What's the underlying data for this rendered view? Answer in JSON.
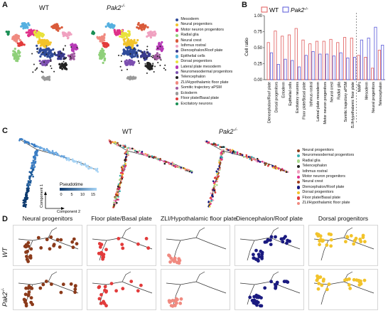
{
  "panels": {
    "A": {
      "letter": "A",
      "title_wt": "WT",
      "title_ko": "Pak2",
      "title_ko_sup": "-/-",
      "legend": [
        {
          "label": "Mesoderm",
          "color": "#2f4b9a"
        },
        {
          "label": "Neural progenitors",
          "color": "#f2c32b"
        },
        {
          "label": "Motor neuron progenitors",
          "color": "#e0318a"
        },
        {
          "label": "Radial glia",
          "color": "#8fd07a"
        },
        {
          "label": "Neural crest",
          "color": "#d95a3a"
        },
        {
          "label": "Isthmus rostral",
          "color": "#f0a1c0"
        },
        {
          "label": "Diencephalon/Roof plate",
          "color": "#3a3a8e"
        },
        {
          "label": "Epithelial cells",
          "color": "#55b0e0"
        },
        {
          "label": "Dorsal progenitors",
          "color": "#e8e23a"
        },
        {
          "label": "Lateral plate mesoderm",
          "color": "#b73ab7"
        },
        {
          "label": "Neuromesodermal progenitors",
          "color": "#7c4fb0"
        },
        {
          "label": "Telencephalon",
          "color": "#222222"
        },
        {
          "label": "ZLI/Hypothalamic floor plate",
          "color": "#f08a80"
        },
        {
          "label": "Somitic trajectory aPSM",
          "color": "#a05aa0"
        },
        {
          "label": "Ectoderm",
          "color": "#9a9a9a"
        },
        {
          "label": "Floor plate/Basal plate",
          "color": "#e23b3b"
        },
        {
          "label": "Excitatory neurons",
          "color": "#1a8f55"
        }
      ]
    },
    "B": {
      "letter": "B",
      "legend_wt": "WT",
      "legend_ko": "Pak2",
      "legend_ko_sup": "-/-",
      "ylabel": "Cell ratio",
      "wt_color": "#e05a5a",
      "ko_color": "#5a5ad8"
    },
    "C": {
      "letter": "C",
      "title_wt": "WT",
      "title_ko": "Pak2",
      "title_ko_sup": "-/-",
      "pseudotime_label": "Pseudotime",
      "pseudotime_ticks": [
        "0",
        "5",
        "10",
        "15"
      ],
      "component1": "Component 1",
      "component2": "Component 2",
      "legend": [
        {
          "label": "Neural progenitors",
          "color": "#8b3a1a"
        },
        {
          "label": "Neuromesodermal progenitors",
          "color": "#3ab0b0"
        },
        {
          "label": "Radial glia",
          "color": "#a8d88a"
        },
        {
          "label": "Telencephalon",
          "color": "#222222"
        },
        {
          "label": "Isthmus rostral",
          "color": "#f0a1c0"
        },
        {
          "label": "Motor neuron progenitors",
          "color": "#e0318a"
        },
        {
          "label": "Neural crest",
          "color": "#a03a1a"
        },
        {
          "label": "Diencephalon/Roof plate",
          "color": "#1a1a80"
        },
        {
          "label": "Dorsal progenitors",
          "color": "#f2c32b"
        },
        {
          "label": "Floor plate/Basal plate",
          "color": "#e23b3b"
        },
        {
          "label": "ZLI/Hypothalamic floor plate",
          "color": "#f08a80"
        }
      ]
    },
    "D": {
      "letter": "D",
      "columns": [
        {
          "title": "Neural progenitors",
          "color": "#8b3a1a"
        },
        {
          "title": "Floor plate/Basal plate",
          "color": "#e23b3b"
        },
        {
          "title": "ZLI/Hypothalamic floor plate",
          "color": "#f08a80"
        },
        {
          "title": "Diencephalon/Roof plate",
          "color": "#1a1a80"
        },
        {
          "title": "Dorsal progenitors",
          "color": "#f2c32b"
        }
      ],
      "row_wt": "WT",
      "row_ko": "Pak2",
      "row_ko_sup": "-/-"
    }
  },
  "chart_data": {
    "type": "bar",
    "ylabel": "Cell ratio",
    "ylim": [
      0,
      1.0
    ],
    "yticks": [
      "0.00",
      "0.25",
      "0.50",
      "0.75",
      "1.00"
    ],
    "grid": false,
    "legend_position": "top-left",
    "categories": [
      "Diencephalon/Roof plate",
      "Dorsal progenitors",
      "Ectoderm",
      "Epithelial cells",
      "Excitatory neurons",
      "Floor plate/Basal plate",
      "Isthmus rostral",
      "Lateral plate mesoderm",
      "Motor neuron progenitors",
      "Neural crest",
      "Radial glia",
      "Somitic trajectory aPSM",
      "ZLI/Hypothalamic floor plate",
      "NMPs",
      "Mesoderm",
      "Neural progenitors",
      "Telencephalon"
    ],
    "series": [
      {
        "name": "WT",
        "values": [
          0.58,
          0.76,
          0.68,
          0.7,
          0.8,
          0.62,
          0.56,
          0.6,
          0.6,
          0.63,
          0.58,
          0.66,
          0.65,
          0.38,
          0.35,
          0.18,
          0.46
        ]
      },
      {
        "name": "Pak2-/-",
        "values": [
          0.42,
          0.24,
          0.32,
          0.3,
          0.2,
          0.38,
          0.44,
          0.4,
          0.4,
          0.37,
          0.42,
          0.34,
          0.35,
          0.62,
          0.65,
          0.82,
          0.54
        ]
      }
    ]
  }
}
